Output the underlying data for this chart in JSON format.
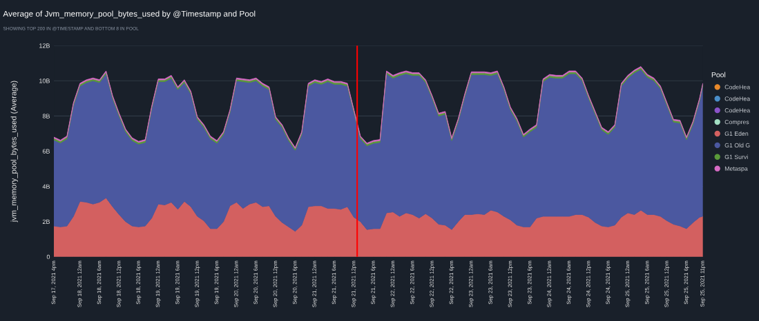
{
  "chart_data": {
    "type": "area",
    "stacked": true,
    "title": "Average of Jvm_memory_pool_bytes_used by @Timestamp and Pool",
    "subtitle": "SHOWING TOP 200 IN @TIMESTAMP AND BOTTOM 8 IN POOL",
    "ylabel": "jvm_memory_pool_bytes_used (Average)",
    "legend_title": "Pool",
    "legend": "right",
    "grid": "y",
    "x": [
      "2021-09-17T16:00",
      "2021-09-17T18:00",
      "2021-09-17T20:00",
      "2021-09-17T22:00",
      "2021-09-18T00:00",
      "2021-09-18T02:00",
      "2021-09-18T04:00",
      "2021-09-18T06:00",
      "2021-09-18T08:00",
      "2021-09-18T10:00",
      "2021-09-18T12:00",
      "2021-09-18T14:00",
      "2021-09-18T16:00",
      "2021-09-18T18:00",
      "2021-09-18T20:00",
      "2021-09-18T22:00",
      "2021-09-19T00:00",
      "2021-09-19T02:00",
      "2021-09-19T04:00",
      "2021-09-19T06:00",
      "2021-09-19T08:00",
      "2021-09-19T10:00",
      "2021-09-19T12:00",
      "2021-09-19T14:00",
      "2021-09-19T16:00",
      "2021-09-19T18:00",
      "2021-09-19T20:00",
      "2021-09-19T22:00",
      "2021-09-20T00:00",
      "2021-09-20T02:00",
      "2021-09-20T04:00",
      "2021-09-20T06:00",
      "2021-09-20T08:00",
      "2021-09-20T10:00",
      "2021-09-20T12:00",
      "2021-09-20T14:00",
      "2021-09-20T16:00",
      "2021-09-20T18:00",
      "2021-09-20T20:00",
      "2021-09-20T22:00",
      "2021-09-21T00:00",
      "2021-09-21T02:00",
      "2021-09-21T04:00",
      "2021-09-21T06:00",
      "2021-09-21T08:00",
      "2021-09-21T10:00",
      "2021-09-21T12:00",
      "2021-09-21T14:00",
      "2021-09-21T16:00",
      "2021-09-21T18:00",
      "2021-09-21T20:00",
      "2021-09-21T22:00",
      "2021-09-22T00:00",
      "2021-09-22T02:00",
      "2021-09-22T04:00",
      "2021-09-22T06:00",
      "2021-09-22T08:00",
      "2021-09-22T10:00",
      "2021-09-22T12:00",
      "2021-09-22T14:00",
      "2021-09-22T16:00",
      "2021-09-22T18:00",
      "2021-09-22T20:00",
      "2021-09-22T22:00",
      "2021-09-23T00:00",
      "2021-09-23T02:00",
      "2021-09-23T04:00",
      "2021-09-23T06:00",
      "2021-09-23T08:00",
      "2021-09-23T10:00",
      "2021-09-23T12:00",
      "2021-09-23T14:00",
      "2021-09-23T16:00",
      "2021-09-23T18:00",
      "2021-09-23T20:00",
      "2021-09-23T22:00",
      "2021-09-24T00:00",
      "2021-09-24T02:00",
      "2021-09-24T04:00",
      "2021-09-24T06:00",
      "2021-09-24T08:00",
      "2021-09-24T10:00",
      "2021-09-24T12:00",
      "2021-09-24T14:00",
      "2021-09-24T16:00",
      "2021-09-24T18:00",
      "2021-09-24T20:00",
      "2021-09-24T22:00",
      "2021-09-25T00:00",
      "2021-09-25T02:00",
      "2021-09-25T04:00",
      "2021-09-25T06:00",
      "2021-09-25T08:00",
      "2021-09-25T10:00",
      "2021-09-25T12:00",
      "2021-09-25T14:00",
      "2021-09-25T16:00",
      "2021-09-25T18:00",
      "2021-09-25T20:00",
      "2021-09-25T22:00",
      "2021-09-25T23:00"
    ],
    "series": [
      {
        "name": "CodeHea",
        "color": "#e8892b",
        "values": [
          null,
          null,
          null,
          null,
          null,
          null,
          null,
          null,
          null,
          null,
          null,
          null,
          null,
          null,
          null,
          null,
          null,
          null,
          null,
          null,
          null,
          null,
          null,
          null,
          null,
          null,
          null,
          null,
          null,
          null,
          null,
          null,
          null,
          null,
          null,
          null,
          null,
          null,
          null,
          null,
          null,
          null,
          null,
          null,
          null,
          null,
          null,
          null,
          null,
          null,
          null,
          null,
          null,
          null,
          null,
          null,
          null,
          null,
          null,
          null,
          null,
          null,
          null,
          null,
          null,
          null,
          null,
          null,
          null,
          null,
          null,
          null,
          null,
          null,
          null,
          null,
          null,
          null,
          null,
          null,
          null,
          null,
          null,
          null,
          null,
          null,
          null,
          null,
          null,
          null,
          null,
          null,
          null,
          null,
          null,
          null,
          null,
          null,
          null,
          null,
          null
        ]
      },
      {
        "name": "CodeHea",
        "color": "#4a8ec9",
        "values": [
          null,
          null,
          null,
          null,
          null,
          null,
          null,
          null,
          null,
          null,
          null,
          null,
          null,
          null,
          null,
          null,
          null,
          null,
          null,
          null,
          null,
          null,
          null,
          null,
          null,
          null,
          null,
          null,
          null,
          null,
          null,
          null,
          null,
          null,
          null,
          null,
          null,
          null,
          null,
          null,
          null,
          null,
          null,
          null,
          null,
          null,
          null,
          null,
          null,
          null,
          null,
          null,
          null,
          null,
          null,
          null,
          null,
          null,
          null,
          null,
          null,
          null,
          null,
          null,
          null,
          null,
          null,
          null,
          null,
          null,
          null,
          null,
          null,
          null,
          null,
          null,
          null,
          null,
          null,
          null,
          null,
          null,
          null,
          null,
          null,
          null,
          null,
          null,
          null,
          null,
          null,
          null,
          null,
          null,
          null,
          null,
          null,
          null,
          null,
          null,
          null
        ]
      },
      {
        "name": "CodeHea",
        "color": "#8b53c9",
        "values": [
          null,
          null,
          null,
          null,
          null,
          null,
          null,
          null,
          null,
          null,
          null,
          null,
          null,
          null,
          null,
          null,
          null,
          null,
          null,
          null,
          null,
          null,
          null,
          null,
          null,
          null,
          null,
          null,
          null,
          null,
          null,
          null,
          null,
          null,
          null,
          null,
          null,
          null,
          null,
          null,
          null,
          null,
          null,
          null,
          null,
          null,
          null,
          null,
          null,
          null,
          null,
          null,
          null,
          null,
          null,
          null,
          null,
          null,
          null,
          null,
          null,
          null,
          null,
          null,
          null,
          null,
          null,
          null,
          null,
          null,
          null,
          null,
          null,
          null,
          null,
          null,
          null,
          null,
          null,
          null,
          null,
          null,
          null,
          null,
          null,
          null,
          null,
          null,
          null,
          null,
          null,
          null,
          null,
          null,
          null,
          null,
          null,
          null,
          null,
          null,
          null
        ]
      },
      {
        "name": "Compres",
        "color": "#a3e0c4",
        "values": [
          null,
          null,
          null,
          null,
          null,
          null,
          null,
          null,
          null,
          null,
          null,
          null,
          null,
          null,
          null,
          null,
          null,
          null,
          null,
          null,
          null,
          null,
          null,
          null,
          null,
          null,
          null,
          null,
          null,
          null,
          null,
          null,
          null,
          null,
          null,
          null,
          null,
          null,
          null,
          null,
          null,
          null,
          null,
          null,
          null,
          null,
          null,
          null,
          null,
          null,
          null,
          null,
          null,
          null,
          null,
          null,
          null,
          null,
          null,
          null,
          null,
          null,
          null,
          null,
          null,
          null,
          null,
          null,
          null,
          null,
          null,
          null,
          null,
          null,
          null,
          null,
          null,
          null,
          null,
          null,
          null,
          null,
          null,
          null,
          null,
          null,
          null,
          null,
          null,
          null,
          null,
          null,
          null,
          null,
          null,
          null,
          null,
          null,
          null,
          null,
          null
        ]
      },
      {
        "name": "G1 Eden",
        "color": "#d36060",
        "values": [
          1.75,
          1.7,
          1.75,
          2.3,
          3.15,
          3.1,
          3.0,
          3.1,
          3.35,
          2.85,
          2.4,
          2.0,
          1.75,
          1.7,
          1.75,
          2.2,
          3.0,
          2.95,
          3.1,
          2.7,
          3.15,
          2.85,
          2.3,
          2.05,
          1.6,
          1.6,
          2.0,
          2.9,
          3.1,
          2.75,
          3.0,
          3.1,
          2.85,
          2.9,
          2.3,
          1.95,
          1.7,
          1.45,
          1.8,
          2.85,
          2.9,
          2.9,
          2.75,
          2.75,
          2.7,
          2.85,
          2.25,
          2.0,
          1.55,
          1.6,
          1.6,
          2.5,
          2.55,
          2.3,
          2.5,
          2.4,
          2.2,
          2.45,
          2.2,
          1.85,
          1.8,
          1.55,
          2.0,
          2.4,
          2.4,
          2.45,
          2.4,
          2.65,
          2.55,
          2.3,
          2.1,
          1.8,
          1.7,
          1.7,
          2.2,
          2.3,
          2.3,
          2.3,
          2.3,
          2.3,
          2.4,
          2.4,
          2.25,
          1.95,
          1.75,
          1.7,
          1.8,
          2.25,
          2.5,
          2.4,
          2.65,
          2.4,
          2.4,
          2.3,
          2.05,
          1.85,
          1.75,
          1.6,
          1.95,
          2.25,
          2.3
        ]
      },
      {
        "name": "G1 Old G",
        "color": "#4b58a0",
        "values": [
          4.89,
          4.77,
          4.95,
          6.3,
          6.55,
          6.8,
          7.0,
          6.8,
          7.05,
          6.15,
          5.6,
          5.1,
          4.85,
          4.7,
          4.75,
          6.2,
          6.95,
          7.0,
          7.05,
          6.8,
          6.75,
          6.4,
          5.5,
          5.3,
          5.1,
          4.85,
          4.95,
          5.3,
          6.9,
          7.2,
          6.9,
          6.9,
          6.85,
          6.6,
          5.5,
          5.4,
          4.9,
          4.6,
          5.15,
          6.85,
          7.0,
          6.9,
          7.2,
          7.05,
          7.1,
          6.85,
          5.95,
          4.7,
          4.75,
          4.85,
          4.9,
          7.9,
          7.6,
          8.0,
          7.9,
          7.9,
          8.1,
          7.45,
          6.8,
          6.15,
          6.3,
          5.05,
          5.7,
          6.7,
          7.95,
          7.9,
          7.95,
          7.65,
          7.85,
          7.2,
          6.25,
          5.9,
          5.1,
          5.4,
          5.15,
          7.65,
          7.9,
          7.85,
          7.85,
          8.1,
          8.0,
          7.6,
          6.75,
          6.15,
          5.45,
          5.25,
          5.55,
          7.45,
          7.65,
          8.05,
          8.0,
          7.8,
          7.6,
          7.25,
          6.55,
          5.8,
          5.85,
          5.05,
          5.6,
          6.6,
          7.4
        ]
      },
      {
        "name": "G1 Survi",
        "color": "#5a9a3a",
        "values": [
          0.1,
          0.1,
          0.1,
          0.1,
          0.1,
          0.1,
          0.1,
          0.1,
          0.1,
          0.1,
          0.1,
          0.1,
          0.1,
          0.1,
          0.1,
          0.1,
          0.1,
          0.1,
          0.1,
          0.1,
          0.1,
          0.1,
          0.1,
          0.1,
          0.1,
          0.1,
          0.1,
          0.1,
          0.1,
          0.1,
          0.1,
          0.1,
          0.1,
          0.1,
          0.1,
          0.1,
          0.1,
          0.1,
          0.1,
          0.1,
          0.1,
          0.1,
          0.1,
          0.1,
          0.1,
          0.1,
          0.1,
          0.1,
          0.1,
          0.1,
          0.1,
          0.1,
          0.1,
          0.1,
          0.1,
          0.1,
          0.1,
          0.1,
          0.1,
          0.1,
          0.1,
          0.1,
          0.1,
          0.1,
          0.1,
          0.1,
          0.1,
          0.1,
          0.1,
          0.1,
          0.1,
          0.1,
          0.1,
          0.1,
          0.1,
          0.1,
          0.1,
          0.1,
          0.1,
          0.1,
          0.1,
          0.1,
          0.1,
          0.1,
          0.1,
          0.1,
          0.1,
          0.1,
          0.1,
          0.1,
          0.1,
          0.1,
          0.1,
          0.1,
          0.1,
          0.1,
          0.1,
          0.1,
          0.1,
          0.1,
          0.1
        ]
      },
      {
        "name": "Metaspa",
        "color": "#d66bc4",
        "values": [
          0.06,
          0.06,
          0.06,
          0.06,
          0.06,
          0.06,
          0.06,
          0.06,
          0.06,
          0.06,
          0.06,
          0.06,
          0.06,
          0.06,
          0.06,
          0.06,
          0.06,
          0.06,
          0.06,
          0.06,
          0.06,
          0.06,
          0.06,
          0.06,
          0.06,
          0.06,
          0.06,
          0.06,
          0.06,
          0.06,
          0.06,
          0.06,
          0.06,
          0.06,
          0.06,
          0.06,
          0.06,
          0.06,
          0.06,
          0.06,
          0.06,
          0.06,
          0.06,
          0.06,
          0.06,
          0.06,
          0.06,
          0.06,
          0.06,
          0.06,
          0.06,
          0.06,
          0.06,
          0.06,
          0.06,
          0.06,
          0.06,
          0.06,
          0.06,
          0.06,
          0.06,
          0.06,
          0.06,
          0.06,
          0.06,
          0.06,
          0.06,
          0.06,
          0.06,
          0.06,
          0.06,
          0.06,
          0.06,
          0.06,
          0.06,
          0.06,
          0.06,
          0.06,
          0.06,
          0.06,
          0.06,
          0.06,
          0.06,
          0.06,
          0.06,
          0.06,
          0.06,
          0.06,
          0.06,
          0.06,
          0.06,
          0.06,
          0.06,
          0.06,
          0.06,
          0.06,
          0.06,
          0.06,
          0.06,
          0.06,
          0.06
        ]
      }
    ],
    "xlim": [
      "2021-09-17T16:00",
      "2021-09-25T23:00"
    ],
    "xticks": [
      {
        "value": "2021-09-17T16:00",
        "label": "Sep 17, 2021 4pm"
      },
      {
        "value": "2021-09-18T00:00",
        "label": "Sep 18, 2021 12am"
      },
      {
        "value": "2021-09-18T06:00",
        "label": "Sep 18, 2021 6am"
      },
      {
        "value": "2021-09-18T12:00",
        "label": "Sep 18, 2021 12pm"
      },
      {
        "value": "2021-09-18T18:00",
        "label": "Sep 18, 2021 6pm"
      },
      {
        "value": "2021-09-19T00:00",
        "label": "Sep 19, 2021 12am"
      },
      {
        "value": "2021-09-19T06:00",
        "label": "Sep 19, 2021 6am"
      },
      {
        "value": "2021-09-19T12:00",
        "label": "Sep 19, 2021 12pm"
      },
      {
        "value": "2021-09-19T18:00",
        "label": "Sep 19, 2021 6pm"
      },
      {
        "value": "2021-09-20T00:00",
        "label": "Sep 20, 2021 12am"
      },
      {
        "value": "2021-09-20T06:00",
        "label": "Sep 20, 2021 6am"
      },
      {
        "value": "2021-09-20T12:00",
        "label": "Sep 20, 2021 12pm"
      },
      {
        "value": "2021-09-20T18:00",
        "label": "Sep 20, 2021 6pm"
      },
      {
        "value": "2021-09-21T00:00",
        "label": "Sep 21, 2021 12am"
      },
      {
        "value": "2021-09-21T06:00",
        "label": "Sep 21, 2021 6am"
      },
      {
        "value": "2021-09-21T12:00",
        "label": "Sep 21, 2021 12pm"
      },
      {
        "value": "2021-09-21T18:00",
        "label": "Sep 21, 2021 6pm"
      },
      {
        "value": "2021-09-22T00:00",
        "label": "Sep 22, 2021 12am"
      },
      {
        "value": "2021-09-22T06:00",
        "label": "Sep 22, 2021 6am"
      },
      {
        "value": "2021-09-22T12:00",
        "label": "Sep 22, 2021 12pm"
      },
      {
        "value": "2021-09-22T18:00",
        "label": "Sep 22, 2021 6pm"
      },
      {
        "value": "2021-09-23T00:00",
        "label": "Sep 23, 2021 12am"
      },
      {
        "value": "2021-09-23T06:00",
        "label": "Sep 23, 2021 6am"
      },
      {
        "value": "2021-09-23T12:00",
        "label": "Sep 23, 2021 12pm"
      },
      {
        "value": "2021-09-23T18:00",
        "label": "Sep 23, 2021 6pm"
      },
      {
        "value": "2021-09-24T00:00",
        "label": "Sep 24, 2021 12am"
      },
      {
        "value": "2021-09-24T06:00",
        "label": "Sep 24, 2021 6am"
      },
      {
        "value": "2021-09-24T12:00",
        "label": "Sep 24, 2021 12pm"
      },
      {
        "value": "2021-09-24T18:00",
        "label": "Sep 24, 2021 6pm"
      },
      {
        "value": "2021-09-25T00:00",
        "label": "Sep 25, 2021 12am"
      },
      {
        "value": "2021-09-25T06:00",
        "label": "Sep 25, 2021 6am"
      },
      {
        "value": "2021-09-25T12:00",
        "label": "Sep 25, 2021 12pm"
      },
      {
        "value": "2021-09-25T18:00",
        "label": "Sep 25, 2021 6pm"
      },
      {
        "value": "2021-09-25T23:00",
        "label": "Sep 25, 2021 11pm"
      }
    ],
    "ylim": [
      0,
      12
    ],
    "yticks": [
      0,
      {
        "value": 2,
        "label": "2B"
      },
      {
        "value": 4,
        "label": "4B"
      },
      {
        "value": 6,
        "label": "6B"
      },
      {
        "value": 8,
        "label": "8B"
      },
      {
        "value": 10,
        "label": "10B"
      },
      {
        "value": 12,
        "label": "12B"
      }
    ],
    "ref_lines": [
      {
        "axis": "x",
        "value": "2021-09-21T13:00",
        "color": "#ff0000",
        "line_style": "solid"
      }
    ]
  }
}
